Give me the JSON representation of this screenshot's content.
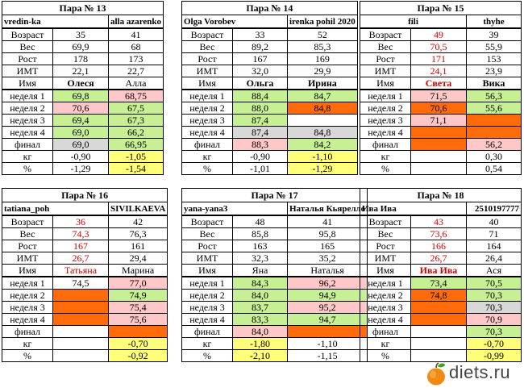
{
  "row_labels": [
    "Возраст",
    "Вес",
    "Рост",
    "ИМТ",
    "Имя",
    "неделя 1",
    "неделя 2",
    "неделя 3",
    "неделя 4",
    "финал",
    "кг",
    "%"
  ],
  "pairs": [
    {
      "title": "Пара № 13",
      "left_user": "vredin-ka",
      "right_user": "alla azarenko",
      "a": {
        "age": "35",
        "weight": "69,9",
        "height": "178",
        "bmi": "22,1",
        "name": "Олеся",
        "w1": "69,8",
        "w2": "70,6",
        "w3": "69,4",
        "w4": "69,0",
        "final": "69,0",
        "kg": "-0,90",
        "pct": "-1,29"
      },
      "b": {
        "age": "41",
        "weight": "68",
        "height": "173",
        "bmi": "22,7",
        "name": "Алла",
        "w1": "68,75",
        "w2": "67,5",
        "w3": "67,3",
        "w4": "66,2",
        "final": "66,95",
        "kg": "-1,05",
        "pct": "-1,54"
      }
    },
    {
      "title": "Пара № 14",
      "left_user": "Olga Vorobev",
      "right_user": "irenka pohil 2020",
      "a": {
        "age": "33",
        "weight": "89,2",
        "height": "167",
        "bmi": "32,0",
        "name": "Ольга",
        "w1": "88,4",
        "w2": "88,0",
        "w3": "87,4",
        "w4": "87,4",
        "final": "88,3",
        "kg": "-0,90",
        "pct": "-1,01"
      },
      "b": {
        "age": "52",
        "weight": "85,3",
        "height": "169",
        "bmi": "29,9",
        "name": "Ирина",
        "w1": "84,7",
        "w2": "84,8",
        "w3": "",
        "w4": "84,8",
        "final": "84,2",
        "kg": "-1,10",
        "pct": "-1,29"
      }
    },
    {
      "title": "Пара № 15",
      "left_user": "fili",
      "right_user": "thyhe",
      "a": {
        "age": "49",
        "weight": "70,5",
        "height": "171",
        "bmi": "24,1",
        "name": "Света",
        "w1": "71,5",
        "w2": "70,6",
        "w3": "71,1",
        "w4": "",
        "final": "",
        "kg": "",
        "pct": ""
      },
      "b": {
        "age": "39",
        "weight": "55,9",
        "height": "153",
        "bmi": "23,9",
        "name": "Вика",
        "w1": "56,3",
        "w2": "55,6",
        "w3": "",
        "w4": "",
        "final": "56,2",
        "kg": "0,30",
        "pct": "0,54"
      }
    },
    {
      "title": "Пара № 16",
      "left_user": "tatiana_poh",
      "right_user": "SIVILKAEVA",
      "a": {
        "age": "36",
        "weight": "74,3",
        "height": "167",
        "bmi": "26,7",
        "name": "Татьяна",
        "w1": "74,5",
        "w2": "",
        "w3": "",
        "w4": "",
        "final": "",
        "kg": "",
        "pct": ""
      },
      "b": {
        "age": "42",
        "weight": "76,3",
        "height": "161",
        "bmi": "29,4",
        "name": "Марина",
        "w1": "77,0",
        "w2": "74,9",
        "w3": "75,4",
        "w4": "75,6",
        "final": "",
        "kg": "-0,70",
        "pct": "-0,92"
      }
    },
    {
      "title": "Пара № 17",
      "left_user": "yana-yana3",
      "right_user": "Наталья Кьярелло",
      "a": {
        "age": "48",
        "weight": "85,8",
        "height": "163",
        "bmi": "32,3",
        "name": "Яна",
        "w1": "84,3",
        "w2": "84,0",
        "w3": "83,7",
        "w4": "83,3",
        "final": "84,0",
        "kg": "-1,80",
        "pct": "-2,10"
      },
      "b": {
        "age": "41",
        "weight": "95,8",
        "height": "165",
        "bmi": "35,2",
        "name": "Наталья",
        "w1": "96,2",
        "w2": "94,9",
        "w3": "95,2",
        "w4": "94,7",
        "final": "",
        "kg": "-1,10",
        "pct": "-1,15"
      }
    },
    {
      "title": "Пара № 18",
      "left_user": "Ива Ива",
      "right_user": "2510197777",
      "a": {
        "age": "43",
        "weight": "73,6",
        "height": "166",
        "bmi": "26,7",
        "name": "Ива Ива",
        "w1": "73,4",
        "w2": "74,8",
        "w3": "",
        "w4": "",
        "final": "",
        "kg": "",
        "pct": ""
      },
      "b": {
        "age": "40",
        "weight": "71",
        "height": "164",
        "bmi": "26,4",
        "name": "Ася",
        "w1": "70,5",
        "w2": "70,3",
        "w3": "70,3",
        "w4": "70,9",
        "final": "70,3",
        "kg": "-0,70",
        "pct": "-0,99"
      }
    }
  ],
  "logo": {
    "text": "diets.ru",
    "icon": "apple-icon"
  }
}
